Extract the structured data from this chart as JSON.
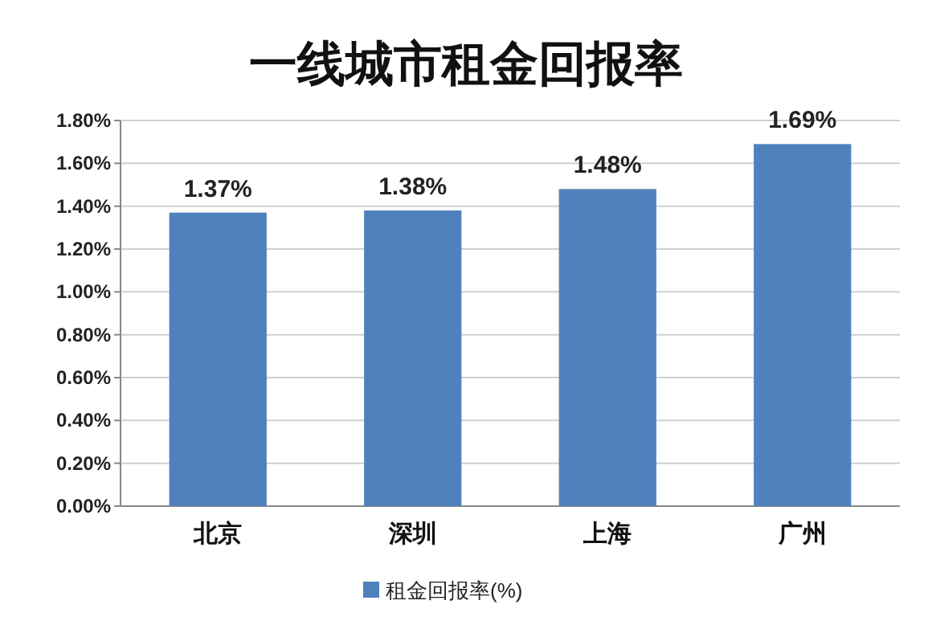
{
  "chart_data": {
    "type": "bar",
    "title": "一线城市租金回报率",
    "categories": [
      "北京",
      "深圳",
      "上海",
      "广州"
    ],
    "series": [
      {
        "name": "租金回报率(%)",
        "color": "#4f81bd",
        "values": [
          1.37,
          1.38,
          1.48,
          1.69
        ],
        "value_labels": [
          "1.37%",
          "1.38%",
          "1.48%",
          "1.69%"
        ]
      }
    ],
    "ylim": [
      0,
      1.8
    ],
    "yticks": [
      {
        "value": 0,
        "label": "0.00%"
      },
      {
        "value": 0.2,
        "label": "0.20%"
      },
      {
        "value": 0.4,
        "label": "0.40%"
      },
      {
        "value": 0.6,
        "label": "0.60%"
      },
      {
        "value": 0.8,
        "label": "0.80%"
      },
      {
        "value": 1.0,
        "label": "1.00%"
      },
      {
        "value": 1.2,
        "label": "1.20%"
      },
      {
        "value": 1.4,
        "label": "1.40%"
      },
      {
        "value": 1.6,
        "label": "1.60%"
      },
      {
        "value": 1.8,
        "label": "1.80%"
      }
    ],
    "grid": "y",
    "legend": "bottom"
  }
}
